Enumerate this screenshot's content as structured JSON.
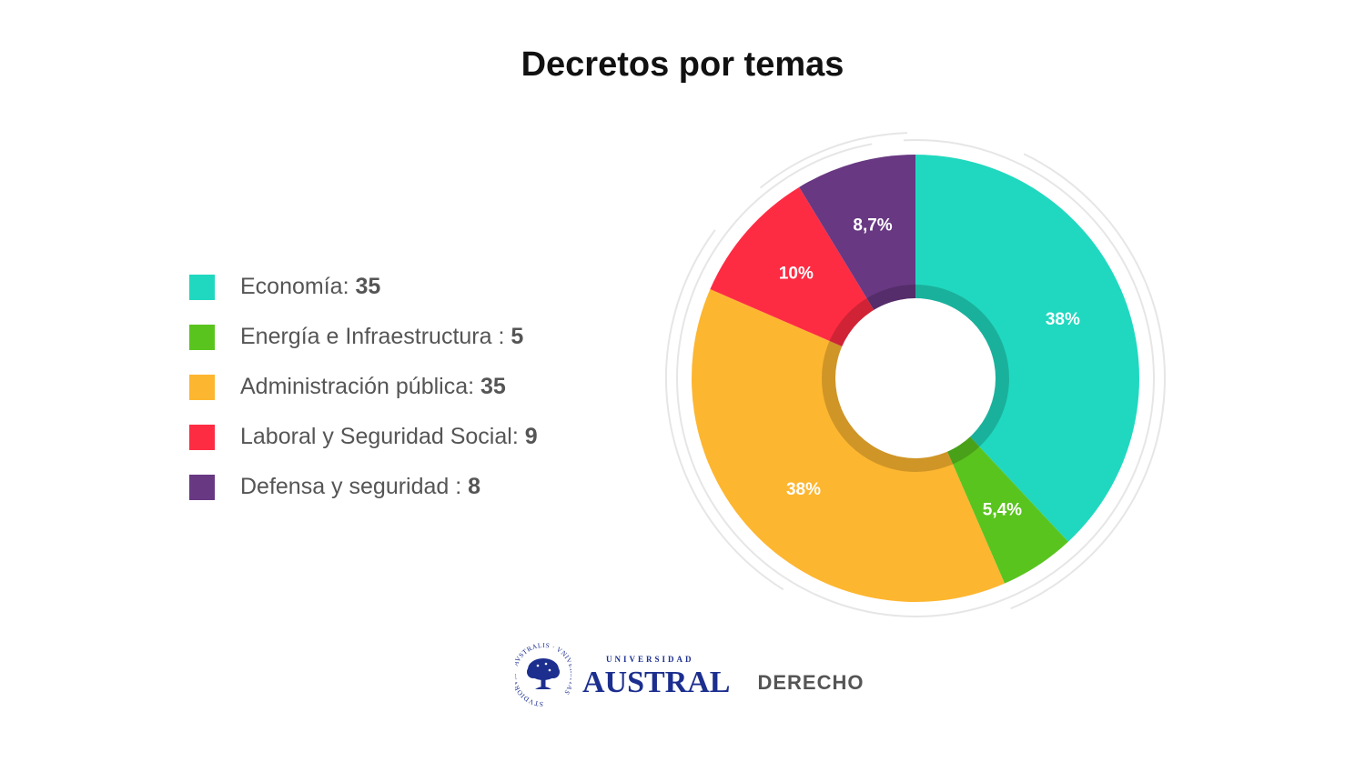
{
  "chart_data": {
    "type": "pie",
    "title": "Decretos por temas",
    "categories": [
      "Economía",
      "Energía e Infraestructura",
      "Administración pública",
      "Laboral y Seguridad Social",
      "Defensa y seguridad"
    ],
    "values": [
      35,
      5,
      35,
      9,
      8
    ],
    "percent_labels": [
      "38%",
      "5,4%",
      "38%",
      "10%",
      "8,7%"
    ],
    "legend_separators": [
      ": ",
      " : ",
      ": ",
      ": ",
      " : "
    ],
    "colors": [
      "#20d8bf",
      "#5ac41f",
      "#fdb630",
      "#fe2c43",
      "#683882"
    ],
    "legend_position": "left"
  },
  "footer": {
    "university_small": "UNIVERSIDAD",
    "university_name": "AUSTRAL",
    "faculty": "DERECHO",
    "logo_text": "STVDIORVM · AVSTRALIS · VNIVERSITAS",
    "logo_color": "#1c2f8f"
  }
}
